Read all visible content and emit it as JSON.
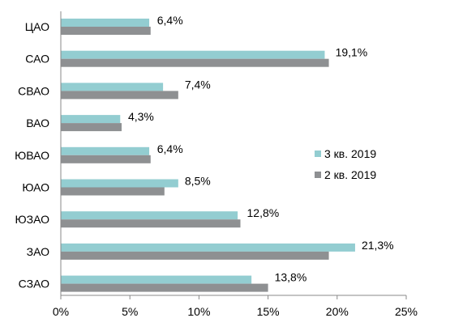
{
  "chart_data": {
    "type": "bar",
    "orientation": "horizontal",
    "categories": [
      "ЦАО",
      "САО",
      "СВАО",
      "ВАО",
      "ЮВАО",
      "ЮАО",
      "ЮЗАО",
      "ЗАО",
      "СЗАО"
    ],
    "series": [
      {
        "name": "3 кв. 2019",
        "color": "#93CDD1",
        "values": [
          6.4,
          19.1,
          7.4,
          4.3,
          6.4,
          8.5,
          12.8,
          21.3,
          13.8
        ],
        "labels": [
          "6,4%",
          "19,1%",
          "7,4%",
          "4,3%",
          "6,4%",
          "8,5%",
          "12,8%",
          "21,3%",
          "13,8%"
        ]
      },
      {
        "name": "2 кв. 2019",
        "color": "#8E9092",
        "values": [
          6.5,
          19.4,
          8.5,
          4.4,
          6.5,
          7.5,
          13.0,
          19.4,
          15.0
        ]
      }
    ],
    "xlim": [
      0,
      25
    ],
    "xticks": [
      0,
      5,
      10,
      15,
      20,
      25
    ],
    "xtick_labels": [
      "0%",
      "5%",
      "10%",
      "15%",
      "20%",
      "25%"
    ],
    "title": "",
    "xlabel": "",
    "ylabel": "",
    "grid": false,
    "legend_position": "right"
  }
}
